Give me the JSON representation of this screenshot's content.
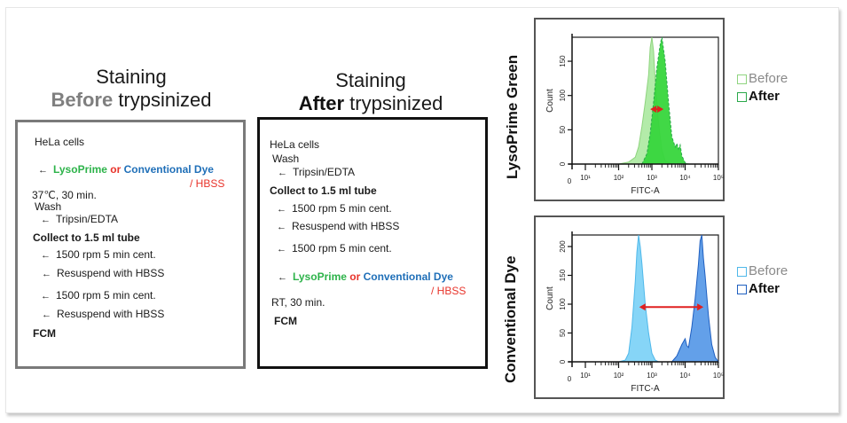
{
  "titles": {
    "left": {
      "line1": "Staining",
      "emph": "Before",
      "rest": " trypsinized"
    },
    "middle": {
      "line1": "Staining",
      "emph": "After",
      "rest": " trypsinized"
    }
  },
  "protocol_before": {
    "steps": [
      {
        "text": "HeLa cells",
        "arrow": false,
        "bold": false
      },
      {
        "arrow": true,
        "reagent": {
          "a": "LysoPrime",
          "or": "or",
          "b": "Conventional Dye",
          "buffer": "/ HBSS"
        }
      },
      {
        "text": "37℃, 30 min.",
        "arrow": false,
        "bold": false
      },
      {
        "text": "Wash",
        "arrow": false,
        "bold": false
      },
      {
        "text": "Tripsin/EDTA",
        "arrow": true,
        "bold": false
      },
      {
        "text": "Collect to 1.5 ml tube",
        "arrow": false,
        "bold": true
      },
      {
        "text": "1500 rpm 5 min cent.",
        "arrow": true,
        "bold": false
      },
      {
        "text": "Resuspend with HBSS",
        "arrow": true,
        "bold": false
      },
      {
        "text": "1500 rpm 5 min cent.",
        "arrow": true,
        "bold": false
      },
      {
        "text": "Resuspend with HBSS",
        "arrow": true,
        "bold": false
      },
      {
        "text": "FCM",
        "arrow": false,
        "bold": true
      }
    ]
  },
  "protocol_after": {
    "steps": [
      {
        "text": "HeLa cells",
        "arrow": false,
        "bold": false
      },
      {
        "text": "Wash",
        "arrow": false,
        "bold": false
      },
      {
        "text": "Tripsin/EDTA",
        "arrow": true,
        "bold": false
      },
      {
        "text": "Collect to 1.5 ml tube",
        "arrow": false,
        "bold": true
      },
      {
        "text": "1500 rpm 5 min cent.",
        "arrow": true,
        "bold": false
      },
      {
        "text": "Resuspend with HBSS",
        "arrow": true,
        "bold": false
      },
      {
        "text": "1500 rpm 5 min cent.",
        "arrow": true,
        "bold": false
      },
      {
        "arrow": true,
        "reagent": {
          "a": "LysoPrime",
          "or": "or",
          "b": "Conventional Dye",
          "buffer": "/ HBSS"
        }
      },
      {
        "text": "RT, 30 min.",
        "arrow": false,
        "bold": false
      },
      {
        "text": "FCM",
        "arrow": false,
        "bold": true
      }
    ]
  },
  "arrow_glyph": "←",
  "colors": {
    "lysoprime": "#2db34a",
    "or": "#e8332a",
    "conventional": "#1f6fb8",
    "hbss": "#e8332a",
    "shift_arrow": "#e02020"
  },
  "chart_data": [
    {
      "type": "area",
      "row_label": "LysoPrime Green",
      "xlabel": "FITC-A",
      "ylabel": "Count",
      "x_scale": "log",
      "x_ticks": [
        "0",
        "10¹",
        "10²",
        "10³",
        "10⁴",
        "10⁵"
      ],
      "y_ticks": [
        "0",
        "50",
        "100",
        "150"
      ],
      "ylim": [
        0,
        185
      ],
      "legend": [
        {
          "label": "Before",
          "color": "#a6e89a",
          "edge": "#8fd47f"
        },
        {
          "label": "After",
          "color": "#37d63c",
          "edge": "#2aa84a"
        }
      ],
      "series": [
        {
          "name": "Before",
          "peak_log10": 3.0,
          "peak_count": 185,
          "points": [
            [
              2.0,
              0
            ],
            [
              2.3,
              3
            ],
            [
              2.5,
              10
            ],
            [
              2.6,
              25
            ],
            [
              2.7,
              55
            ],
            [
              2.8,
              90
            ],
            [
              2.9,
              130
            ],
            [
              2.95,
              170
            ],
            [
              3.0,
              185
            ],
            [
              3.05,
              165
            ],
            [
              3.1,
              120
            ],
            [
              3.2,
              60
            ],
            [
              3.3,
              20
            ],
            [
              3.4,
              5
            ],
            [
              3.6,
              0
            ]
          ]
        },
        {
          "name": "After",
          "peak_log10": 3.3,
          "peak_count": 185,
          "points": [
            [
              2.7,
              0
            ],
            [
              2.85,
              15
            ],
            [
              2.95,
              45
            ],
            [
              3.05,
              90
            ],
            [
              3.15,
              140
            ],
            [
              3.25,
              175
            ],
            [
              3.3,
              185
            ],
            [
              3.4,
              150
            ],
            [
              3.5,
              90
            ],
            [
              3.6,
              40
            ],
            [
              3.7,
              25
            ],
            [
              3.75,
              30
            ],
            [
              3.8,
              22
            ],
            [
              3.85,
              28
            ],
            [
              3.9,
              12
            ],
            [
              4.0,
              2
            ],
            [
              4.1,
              0
            ]
          ]
        }
      ],
      "shift_arrow": {
        "from_log10": 2.95,
        "to_log10": 3.35,
        "at_count": 80
      }
    },
    {
      "type": "area",
      "row_label": "Conventional Dye",
      "xlabel": "FITC-A",
      "ylabel": "Count",
      "x_scale": "log",
      "x_ticks": [
        "0",
        "10¹",
        "10²",
        "10³",
        "10⁴",
        "10⁵"
      ],
      "y_ticks": [
        "0",
        "50",
        "100",
        "150",
        "200"
      ],
      "ylim": [
        0,
        220
      ],
      "legend": [
        {
          "label": "Before",
          "color": "#7fd3f7",
          "edge": "#4fb8ea"
        },
        {
          "label": "After",
          "color": "#5b9be8",
          "edge": "#1f5fc0"
        }
      ],
      "series": [
        {
          "name": "Before",
          "peak_log10": 2.6,
          "peak_count": 220,
          "points": [
            [
              2.0,
              0
            ],
            [
              2.2,
              3
            ],
            [
              2.3,
              15
            ],
            [
              2.4,
              60
            ],
            [
              2.5,
              140
            ],
            [
              2.55,
              190
            ],
            [
              2.6,
              220
            ],
            [
              2.65,
              200
            ],
            [
              2.7,
              170
            ],
            [
              2.8,
              100
            ],
            [
              2.9,
              50
            ],
            [
              3.0,
              15
            ],
            [
              3.1,
              3
            ],
            [
              3.2,
              0
            ]
          ]
        },
        {
          "name": "After",
          "peak_log10": 4.5,
          "peak_count": 220,
          "points": [
            [
              3.6,
              0
            ],
            [
              3.75,
              10
            ],
            [
              3.9,
              30
            ],
            [
              4.0,
              40
            ],
            [
              4.05,
              28
            ],
            [
              4.1,
              25
            ],
            [
              4.2,
              60
            ],
            [
              4.3,
              110
            ],
            [
              4.4,
              170
            ],
            [
              4.45,
              210
            ],
            [
              4.5,
              220
            ],
            [
              4.55,
              180
            ],
            [
              4.6,
              150
            ],
            [
              4.7,
              80
            ],
            [
              4.8,
              30
            ],
            [
              4.9,
              8
            ],
            [
              5.0,
              0
            ]
          ]
        }
      ],
      "shift_arrow": {
        "from_log10": 2.62,
        "to_log10": 4.55,
        "at_count": 95
      }
    }
  ]
}
